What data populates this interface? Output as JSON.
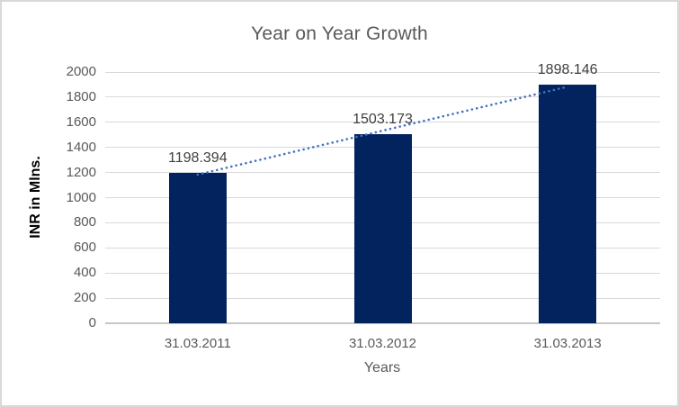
{
  "chart_data": {
    "type": "bar",
    "title": "Year on Year Growth",
    "categories": [
      "31.03.2011",
      "31.03.2012",
      "31.03.2013"
    ],
    "values": [
      1198.394,
      1503.173,
      1898.146
    ],
    "data_labels": [
      "1198.394",
      "1503.173",
      "1898.146"
    ],
    "xlabel": "Years",
    "ylabel": "INR in Mlns.",
    "ylim": [
      0,
      2000
    ],
    "ytick_step": 200,
    "grid": true,
    "legend": "none",
    "trendline": {
      "type": "linear",
      "style": "dotted"
    },
    "colors": {
      "bar": "#02235D",
      "trendline": "#4472C4",
      "gridline": "#D9D9D9",
      "axis_line": "#C6C6C6",
      "title_text": "#595959",
      "tick_text": "#595959",
      "data_label_text": "#404040",
      "x_axis_title_text": "#595959",
      "y_axis_title_text": "#000000",
      "chart_border": "#D9D9D9",
      "background": "#FFFFFF"
    }
  }
}
